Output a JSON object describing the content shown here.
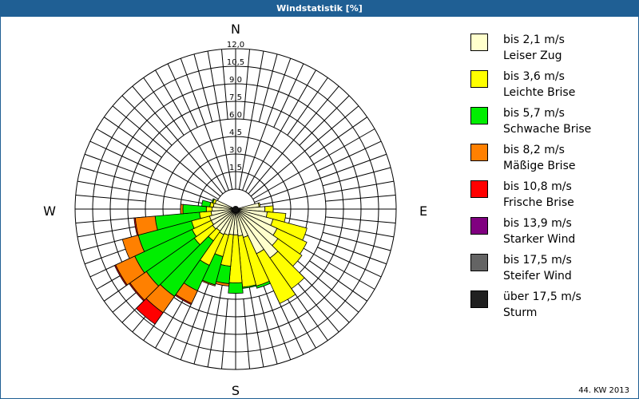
{
  "header": {
    "title": "Windstatistik [%]"
  },
  "footer": {
    "period": "44. KW 2013"
  },
  "compass": {
    "n": "N",
    "e": "E",
    "s": "S",
    "w": "W"
  },
  "legend": [
    {
      "line1": "bis 2,1 m/s",
      "line2": "Leiser Zug",
      "color": "#ffffcc"
    },
    {
      "line1": "bis 3,6 m/s",
      "line2": "Leichte Brise",
      "color": "#ffff00"
    },
    {
      "line1": "bis 5,7 m/s",
      "line2": "Schwache Brise",
      "color": "#00ee00"
    },
    {
      "line1": "bis 8,2 m/s",
      "line2": "Mäßige Brise",
      "color": "#ff8000"
    },
    {
      "line1": "bis 10,8 m/s",
      "line2": "Frische Brise",
      "color": "#ff0000"
    },
    {
      "line1": "bis 13,9 m/s",
      "line2": "Starker Wind",
      "color": "#800080"
    },
    {
      "line1": "bis 17,5 m/s",
      "line2": "Steifer Wind",
      "color": "#646464"
    },
    {
      "line1": "über 17,5 m/s",
      "line2": "Sturm",
      "color": "#202020"
    }
  ],
  "chart_data": {
    "type": "wind-rose",
    "title": "Windstatistik [%]",
    "subtitle": "44. KW 2013",
    "radial_ticks": [
      "1,5",
      "3,0",
      "4,5",
      "6,0",
      "7,5",
      "9,0",
      "10,5",
      "12,0"
    ],
    "rmax": 12.0,
    "series": [
      "bis 2,1 m/s",
      "bis 3,6 m/s",
      "bis 5,7 m/s",
      "bis 8,2 m/s",
      "bis 10,8 m/s",
      "bis 13,9 m/s",
      "bis 17,5 m/s",
      "über 17,5 m/s"
    ],
    "sector_width_deg": 10,
    "directions_deg": [
      80,
      90,
      100,
      110,
      120,
      130,
      140,
      150,
      160,
      170,
      180,
      190,
      200,
      210,
      220,
      230,
      240,
      250,
      260,
      270,
      280,
      290
    ],
    "cumulative": [
      [
        0.3,
        0.4,
        0.4,
        0.4,
        0.4
      ],
      [
        0.8,
        1.5,
        1.5,
        1.5,
        1.5
      ],
      [
        1.0,
        2.6,
        2.6,
        2.6,
        2.6
      ],
      [
        1.6,
        4.6,
        4.6,
        4.6,
        4.6
      ],
      [
        2.2,
        5.0,
        5.0,
        5.0,
        5.0
      ],
      [
        2.7,
        5.2,
        5.2,
        5.2,
        5.2
      ],
      [
        3.4,
        6.6,
        6.6,
        6.6,
        6.6
      ],
      [
        2.5,
        7.2,
        7.2,
        7.2,
        7.2
      ],
      [
        0.8,
        5.1,
        5.3,
        5.3,
        5.3
      ],
      [
        0.6,
        5.0,
        5.1,
        5.1,
        5.1
      ],
      [
        0.5,
        4.6,
        5.5,
        5.5,
        5.5
      ],
      [
        0.5,
        3.2,
        4.7,
        4.9,
        4.9
      ],
      [
        0.6,
        2.5,
        5.0,
        5.1,
        5.1
      ],
      [
        0.7,
        3.6,
        6.0,
        7.2,
        7.3
      ],
      [
        0.6,
        1.6,
        7.4,
        9.1,
        10.3
      ],
      [
        0.7,
        2.6,
        7.6,
        9.3,
        9.4
      ],
      [
        0.6,
        2.4,
        7.8,
        9.6,
        9.7
      ],
      [
        0.6,
        2.2,
        6.9,
        8.3,
        8.3
      ],
      [
        0.4,
        1.4,
        5.2,
        6.9,
        7.0
      ],
      [
        0.3,
        0.8,
        2.8,
        3.0,
        3.0
      ],
      [
        0.2,
        0.5,
        1.2,
        1.2,
        1.2
      ],
      [
        0.1,
        0.3,
        0.4,
        0.4,
        0.4
      ]
    ],
    "legend_position": "right",
    "grid": true
  }
}
